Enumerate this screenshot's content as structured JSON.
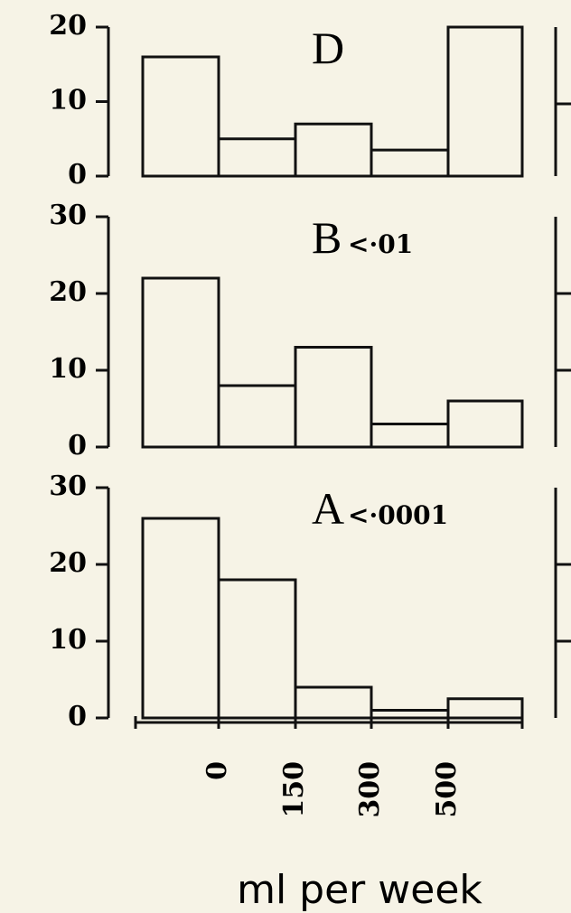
{
  "chart_data": [
    {
      "type": "bar",
      "title": "D",
      "values": [
        16,
        5,
        7,
        3.5,
        20
      ],
      "ylim": [
        0,
        20
      ],
      "yticks": [
        0,
        10,
        20
      ]
    },
    {
      "type": "bar",
      "title": "B",
      "annotation": "<·01",
      "values": [
        22,
        8,
        13,
        3,
        6
      ],
      "ylim": [
        0,
        30
      ],
      "yticks": [
        0,
        10,
        20,
        30
      ]
    },
    {
      "type": "bar",
      "title": "A",
      "annotation": "<·0001",
      "values": [
        26,
        18,
        4,
        1,
        2.5
      ],
      "ylim": [
        0,
        30
      ],
      "yticks": [
        0,
        10,
        20,
        30
      ],
      "bin_edge_labels": [
        "0",
        "150",
        "300",
        "500"
      ],
      "xlabel": "ml per week"
    }
  ]
}
